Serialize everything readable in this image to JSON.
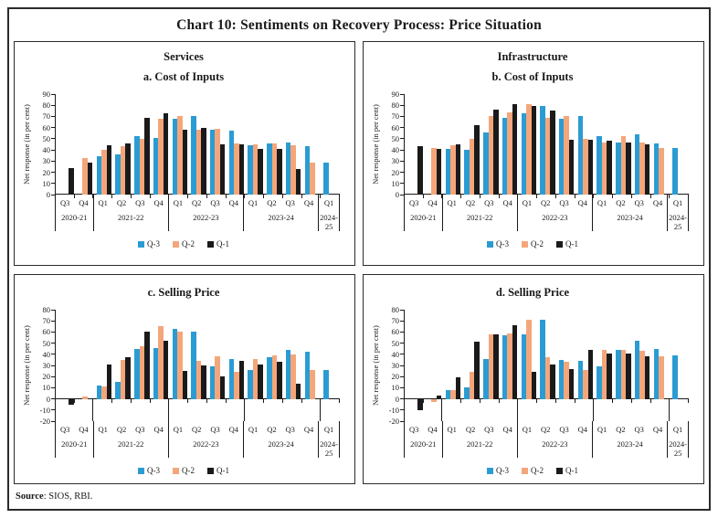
{
  "title": "Chart 10: Sentiments on Recovery Process: Price Situation",
  "ylabel": "Net response (in per cent)",
  "source": {
    "label": "Source",
    "text": ": SIOS, RBI."
  },
  "colors": {
    "q3_blue": "#2B9CD3",
    "q2_orange": "#F4A67B",
    "q1_black": "#1A1A1A",
    "axis": "#1A1A1A"
  },
  "legend": [
    {
      "name": "Q-3",
      "color": "#2B9CD3"
    },
    {
      "name": "Q-2",
      "color": "#F4A67B"
    },
    {
      "name": "Q-1",
      "color": "#1A1A1A"
    }
  ],
  "x_groups": [
    {
      "year": "2020-21",
      "quarters": [
        "Q3",
        "Q4"
      ]
    },
    {
      "year": "2021-22",
      "quarters": [
        "Q1",
        "Q2",
        "Q3",
        "Q4"
      ]
    },
    {
      "year": "2022-23",
      "quarters": [
        "Q1",
        "Q2",
        "Q3",
        "Q4"
      ]
    },
    {
      "year": "2023-24",
      "quarters": [
        "Q1",
        "Q2",
        "Q3",
        "Q4"
      ]
    },
    {
      "year": "2024-25",
      "quarters": [
        "Q1"
      ]
    }
  ],
  "chart_data": [
    {
      "type": "bar",
      "sector": "Services",
      "subtitle": "a. Cost of Inputs",
      "ylim": [
        0,
        90
      ],
      "ytick_step": 10,
      "series": [
        {
          "name": "Q-3",
          "color": "#2B9CD3",
          "values": [
            null,
            null,
            34,
            36,
            52,
            51,
            68,
            70,
            58,
            57,
            44,
            46,
            47,
            43,
            29
          ]
        },
        {
          "name": "Q-2",
          "color": "#F4A67B",
          "values": [
            null,
            33,
            40,
            43,
            50,
            68,
            70,
            58,
            59,
            46,
            45,
            46,
            44,
            29,
            null
          ]
        },
        {
          "name": "Q-1",
          "color": "#1A1A1A",
          "values": [
            24,
            29,
            44,
            46,
            69,
            73,
            58,
            60,
            45,
            45,
            41,
            41,
            23,
            null,
            null
          ]
        }
      ]
    },
    {
      "type": "bar",
      "sector": "Infrastructure",
      "subtitle": "b. Cost of Inputs",
      "ylim": [
        0,
        90
      ],
      "ytick_step": 10,
      "series": [
        {
          "name": "Q-3",
          "color": "#2B9CD3",
          "values": [
            null,
            null,
            41,
            40,
            56,
            69,
            73,
            79,
            68,
            70,
            52,
            47,
            54,
            46,
            42
          ]
        },
        {
          "name": "Q-2",
          "color": "#F4A67B",
          "values": [
            null,
            42,
            44,
            50,
            70,
            74,
            81,
            69,
            70,
            50,
            47,
            52,
            47,
            42,
            null
          ]
        },
        {
          "name": "Q-1",
          "color": "#1A1A1A",
          "values": [
            43,
            41,
            45,
            62,
            76,
            81,
            79,
            75,
            49,
            49,
            48,
            47,
            45,
            null,
            null
          ]
        }
      ]
    },
    {
      "type": "bar",
      "sector": null,
      "subtitle": "c. Selling Price",
      "ylim": [
        -20,
        80
      ],
      "ytick_step": 10,
      "series": [
        {
          "name": "Q-3",
          "color": "#2B9CD3",
          "values": [
            null,
            null,
            12,
            15,
            45,
            46,
            63,
            60,
            29,
            36,
            26,
            37,
            44,
            42,
            26
          ]
        },
        {
          "name": "Q-2",
          "color": "#F4A67B",
          "values": [
            null,
            2,
            11,
            35,
            47,
            65,
            60,
            34,
            38,
            24,
            36,
            39,
            40,
            26,
            null
          ]
        },
        {
          "name": "Q-1",
          "color": "#1A1A1A",
          "values": [
            -5,
            null,
            31,
            37,
            60,
            52,
            25,
            30,
            20,
            34,
            31,
            33,
            14,
            null,
            null
          ]
        }
      ]
    },
    {
      "type": "bar",
      "sector": null,
      "subtitle": "d. Selling Price",
      "ylim": [
        -20,
        80
      ],
      "ytick_step": 10,
      "series": [
        {
          "name": "Q-3",
          "color": "#2B9CD3",
          "values": [
            null,
            null,
            8,
            10,
            36,
            57,
            58,
            71,
            35,
            34,
            29,
            44,
            52,
            45,
            39
          ]
        },
        {
          "name": "Q-2",
          "color": "#F4A67B",
          "values": [
            null,
            -3,
            8,
            24,
            58,
            59,
            71,
            37,
            33,
            26,
            44,
            44,
            43,
            38,
            null
          ]
        },
        {
          "name": "Q-1",
          "color": "#1A1A1A",
          "values": [
            -10,
            3,
            19,
            51,
            58,
            66,
            24,
            31,
            27,
            44,
            41,
            41,
            38,
            null,
            null
          ]
        }
      ]
    }
  ]
}
